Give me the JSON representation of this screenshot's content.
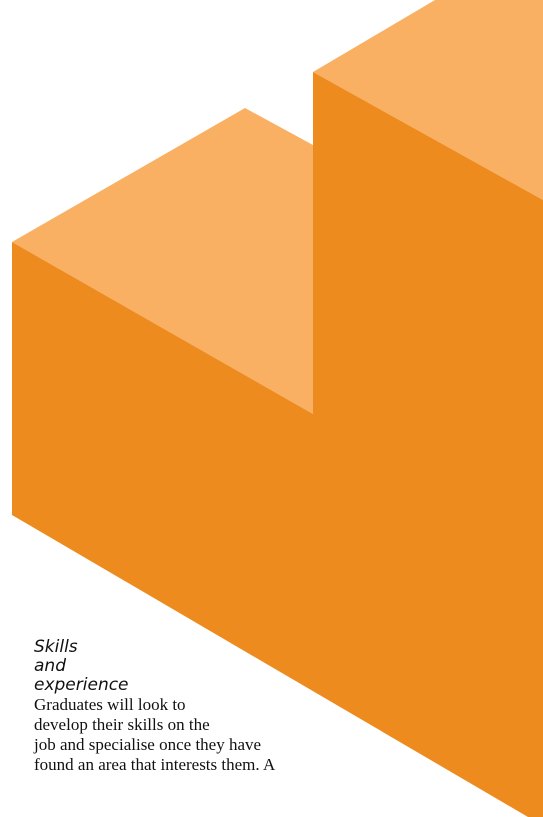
{
  "colors": {
    "top_face": "#f9b063",
    "front_face": "#ed8b1f",
    "background": "#ffffff"
  },
  "section": {
    "heading_lines": [
      "Skills",
      "and",
      "experience"
    ],
    "body_lines": [
      "Graduates will look to",
      "develop their skills on the",
      "job and specialise once they have",
      "found an area that interests them. A"
    ]
  }
}
